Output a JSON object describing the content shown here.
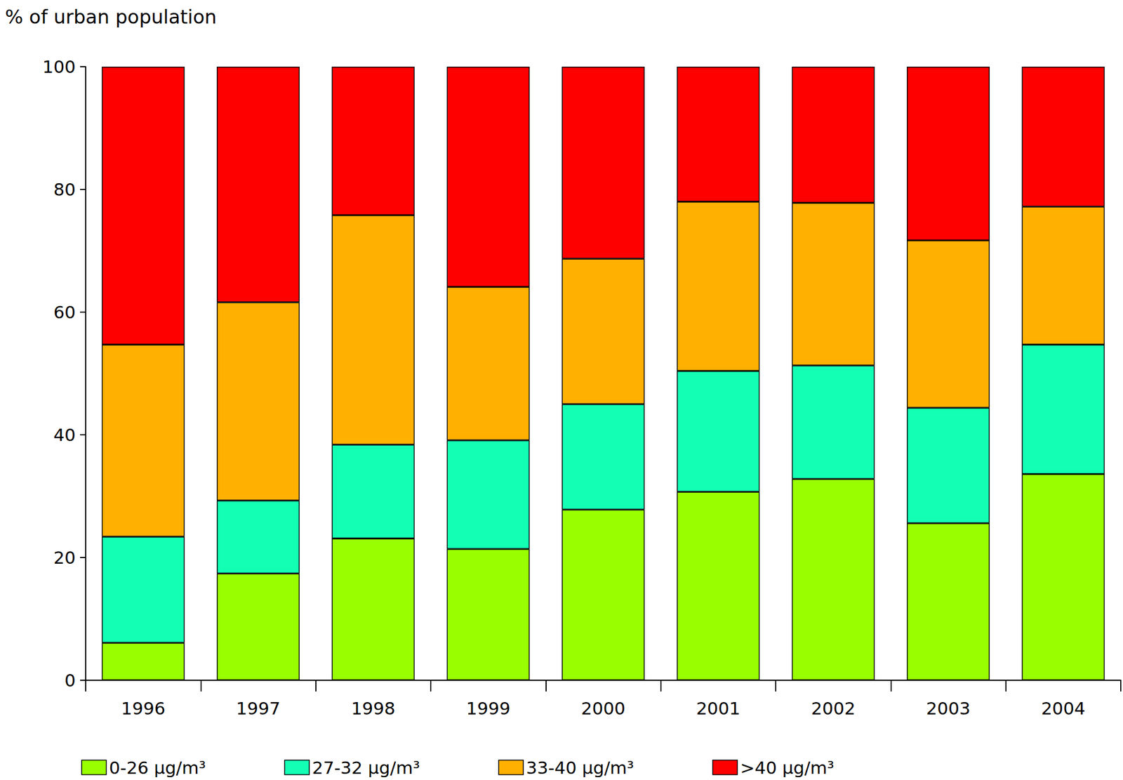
{
  "chart_data": {
    "type": "bar",
    "stacked": true,
    "grid": false,
    "legend": "bottom",
    "y_label": "% of urban population",
    "categories": [
      "1996",
      "1997",
      "1998",
      "1999",
      "2000",
      "2001",
      "2002",
      "2003",
      "2004"
    ],
    "series": [
      {
        "name": "0-26 µg/m³",
        "color": "#99ff00",
        "values": [
          6.1,
          17.4,
          23.1,
          21.4,
          27.8,
          30.7,
          32.8,
          25.6,
          33.6
        ]
      },
      {
        "name": "27-32 µg/m³",
        "color": "#12ffb4",
        "values": [
          17.3,
          11.9,
          15.3,
          17.7,
          17.2,
          19.7,
          18.5,
          18.8,
          21.1
        ]
      },
      {
        "name": "33-40 µg/m³",
        "color": "#ffb000",
        "values": [
          31.3,
          32.3,
          37.4,
          25.0,
          23.7,
          27.6,
          26.5,
          27.3,
          22.5
        ]
      },
      {
        "name": ">40 µg/m³",
        "color": "#ff0000",
        "values": [
          45.3,
          38.4,
          24.2,
          35.9,
          31.3,
          22.0,
          22.2,
          28.3,
          22.8
        ]
      }
    ],
    "ylim": [
      0,
      100
    ],
    "yticks": [
      0,
      20,
      40,
      60,
      80,
      100
    ]
  }
}
